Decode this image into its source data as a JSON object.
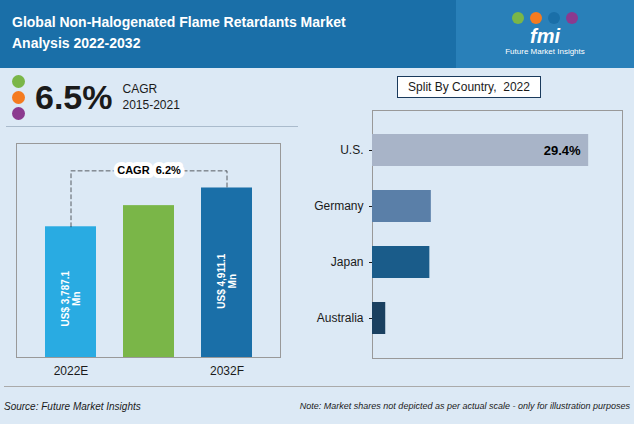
{
  "chart_data": [
    {
      "type": "bar",
      "title": "Global Non-Halogenated Flame Retardants Market",
      "subtitle": "Analysis 2022-2032",
      "categories": [
        "2022E",
        null,
        "2032F"
      ],
      "values": [
        3787.1,
        4400,
        4911.1
      ],
      "colors": [
        "#29abe2",
        "#7ab648",
        "#1a6fa8"
      ],
      "data_labels": true,
      "value_labels": [
        "US$ 3,787.1\nMn",
        null,
        "US$ 4,911.1\nMn"
      ],
      "ylim": [
        0,
        6200
      ],
      "tick_labels": "x",
      "annotations": [
        "fmi",
        "Future Market Insights",
        "6.5%",
        "CAGR",
        "2015-2021",
        "CAGR  6.2%",
        "Source: Future Market Insights",
        "Note: Market shares not depicted as per actual scale - only for illustration purposes"
      ]
    },
    {
      "type": "bar",
      "orientation": "horizontal",
      "title": "Split By Country,  2022",
      "categories": [
        "U.S.",
        "Germany",
        "Japan",
        "Australia"
      ],
      "values": [
        29.4,
        8.0,
        7.8,
        1.8
      ],
      "colors": [
        "#a8b4c8",
        "#5a7fa8",
        "#1a5c8a",
        "#1a4060"
      ],
      "data_labels": true,
      "value_labels": [
        "29.4%",
        null,
        null,
        null
      ],
      "xlim": [
        0,
        34
      ],
      "tick_labels": "y"
    }
  ]
}
